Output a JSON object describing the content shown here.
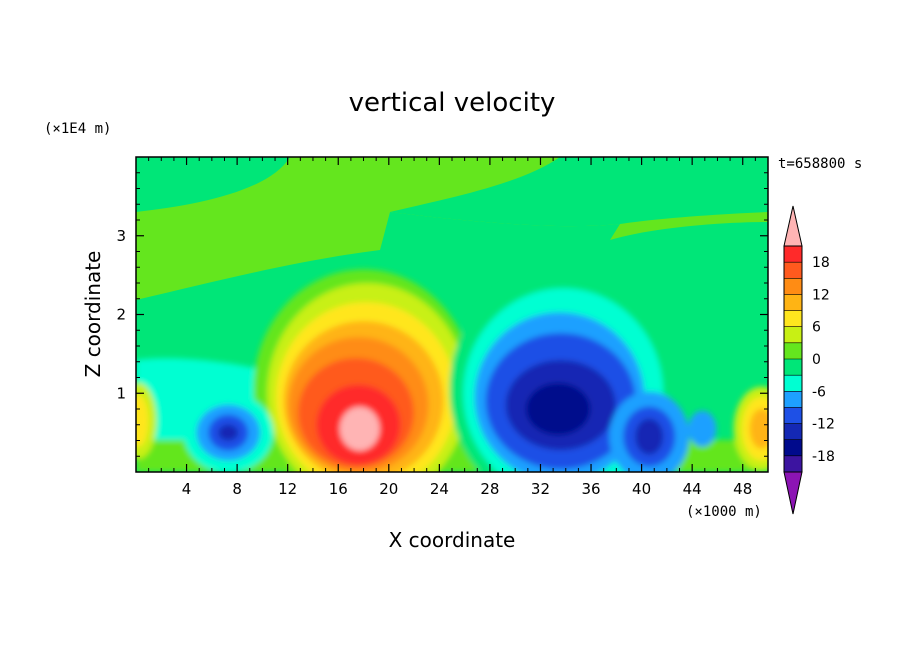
{
  "chart_data": {
    "type": "heatmap",
    "title": "vertical velocity",
    "xlabel": "X coordinate",
    "ylabel": "Z coordinate",
    "x_unit": "(×1000 m)",
    "y_unit": "(×1E4 m)",
    "time_label": "t=658800 s",
    "x_range": [
      0,
      50
    ],
    "y_range": [
      0,
      4
    ],
    "x_ticks": [
      "4",
      "8",
      "12",
      "16",
      "20",
      "24",
      "28",
      "32",
      "36",
      "40",
      "44",
      "48"
    ],
    "y_ticks": [
      "1",
      "2",
      "3"
    ],
    "colorbar": {
      "labels": [
        "18",
        "12",
        "6",
        "0",
        "-6",
        "-12",
        "-18"
      ],
      "levels_top_to_bottom": [
        18,
        15,
        12,
        9,
        6,
        3,
        0,
        -3,
        -6,
        -9,
        -12,
        -15,
        -18
      ],
      "colors_top_to_bottom": [
        "#ff2a2a",
        "#ff5a1e",
        "#ff8c14",
        "#ffb414",
        "#ffe61e",
        "#c8f014",
        "#64e61e",
        "#00e678",
        "#00ffd2",
        "#1ea0ff",
        "#1e50e6",
        "#1428b4",
        "#000a8c",
        "#3c14a0"
      ],
      "over_color": "#ffb4b4",
      "under_color": "#8c14b4"
    },
    "features": [
      {
        "name": "updraft core",
        "x": 17.5,
        "z": 0.55,
        "w": 20
      },
      {
        "name": "downdraft core",
        "x": 33.5,
        "z": 0.85,
        "w": -18
      },
      {
        "name": "downdraft left",
        "x": 7.5,
        "z": 0.5,
        "w": -12
      },
      {
        "name": "downdraft right",
        "x": 40.5,
        "z": 0.45,
        "w": -14
      },
      {
        "name": "updraft right edge",
        "x": 49,
        "z": 0.55,
        "w": 8
      },
      {
        "name": "updraft left edge",
        "x": 0.5,
        "z": 0.65,
        "w": 6
      }
    ]
  }
}
